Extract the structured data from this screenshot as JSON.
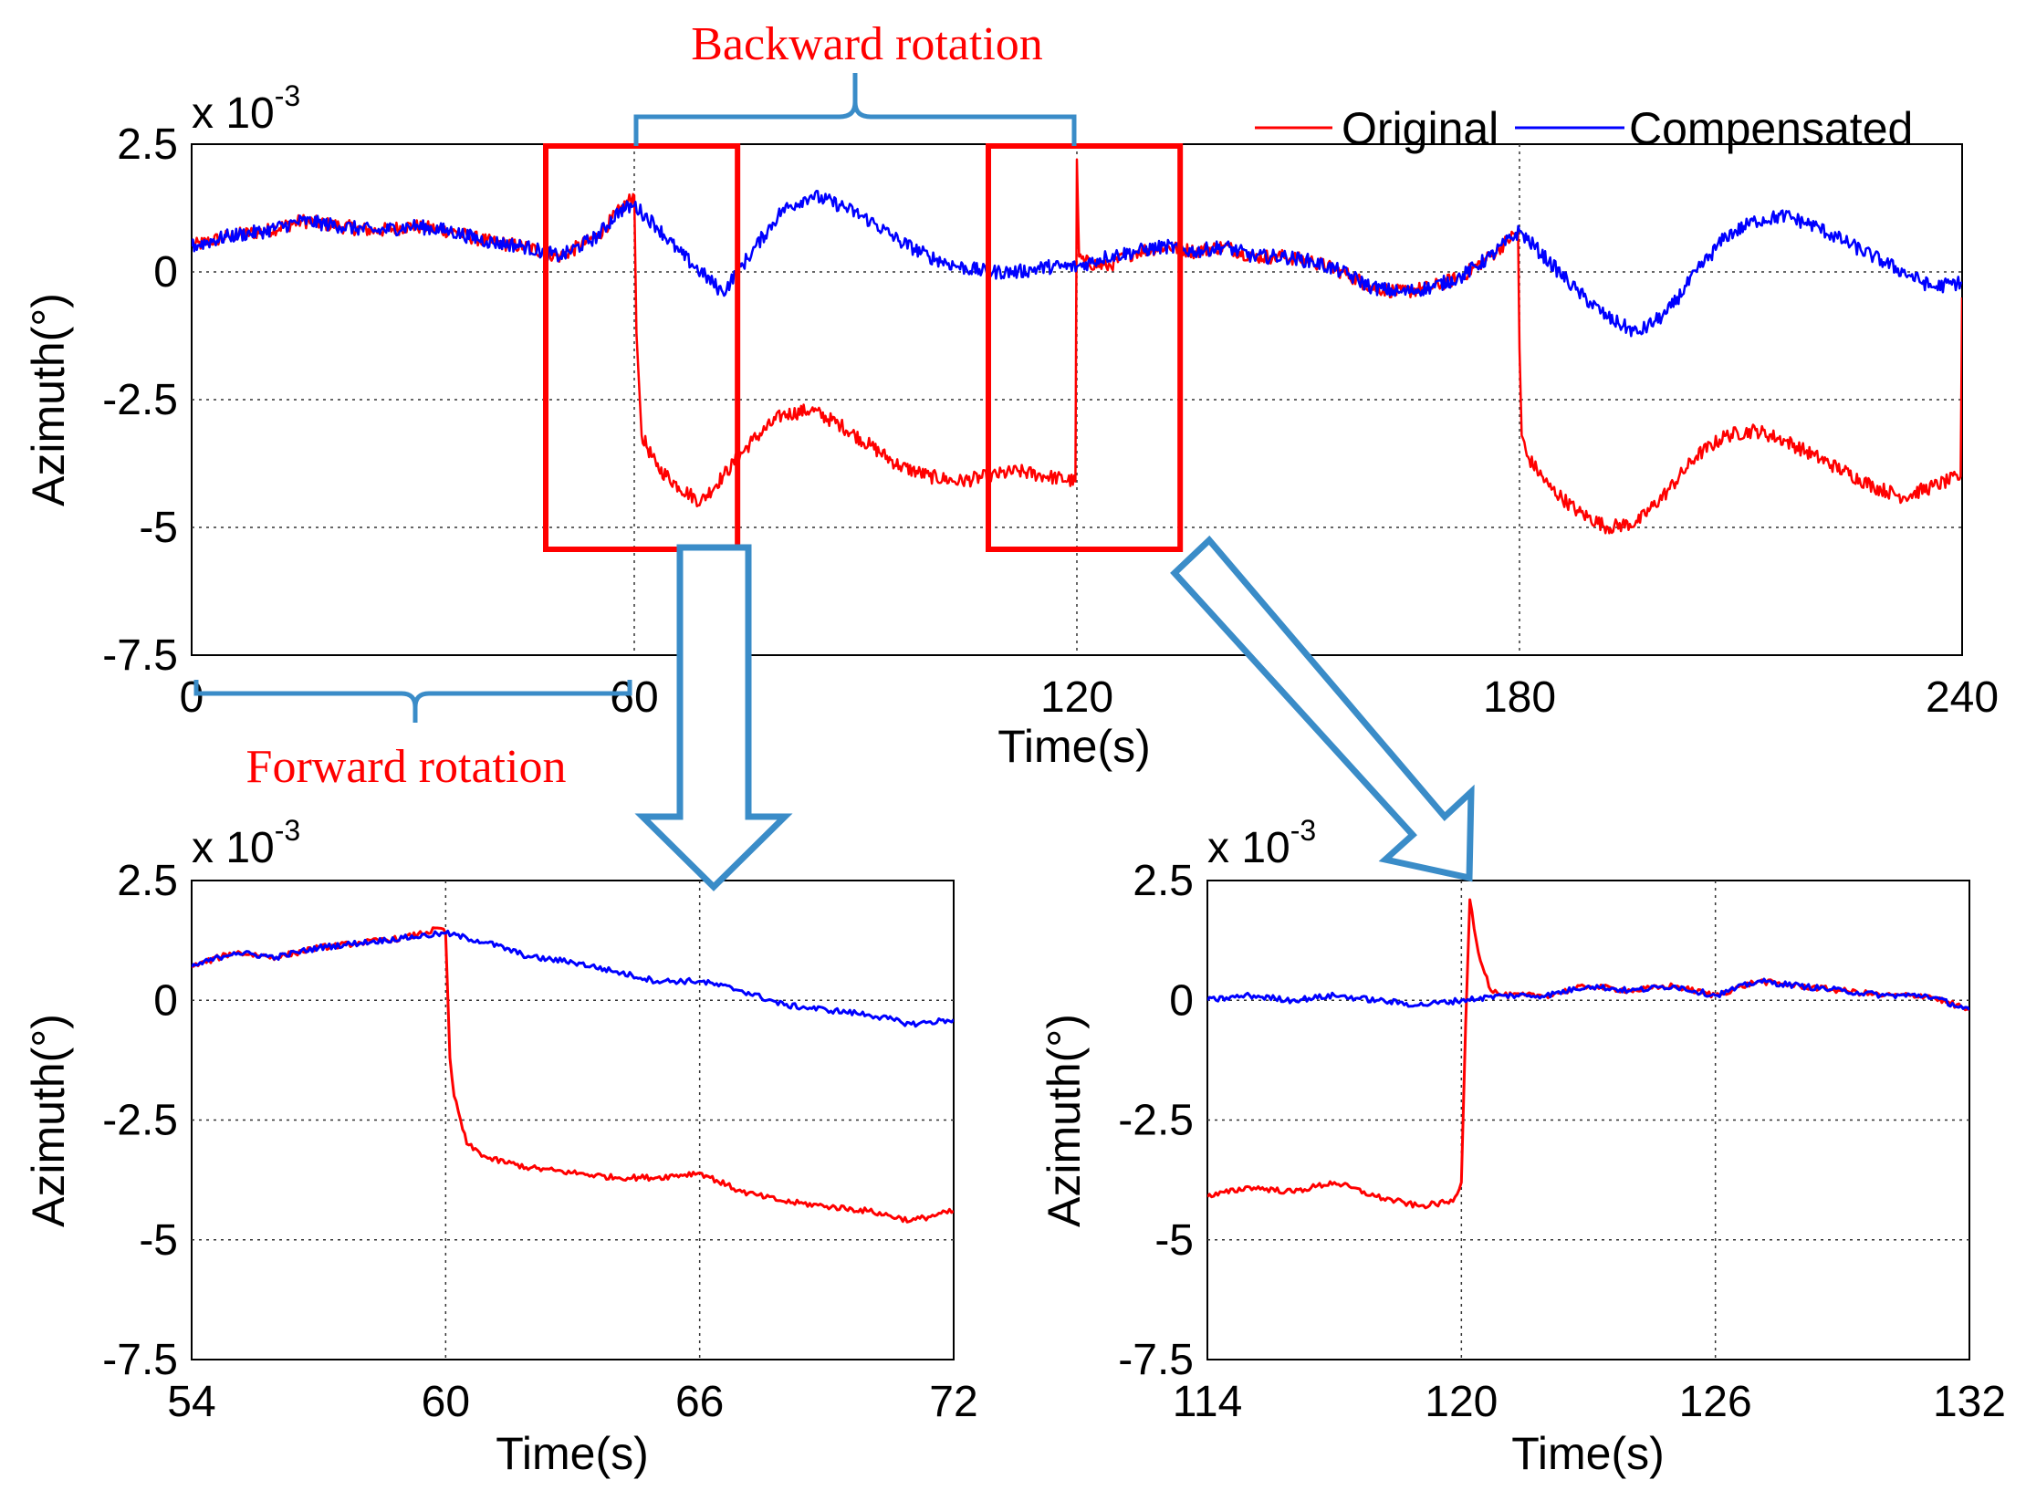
{
  "colors": {
    "original": "#ff0000",
    "compensated": "#0000ff",
    "annotation": "#3a8cc8",
    "highlight": "#ff0000"
  },
  "annotations": {
    "backward": "Backward rotation",
    "forward": "Forward rotation"
  },
  "legend": [
    "Original",
    "Compensated"
  ],
  "chart_data": [
    {
      "id": "main",
      "type": "line",
      "xlabel": "Time(s)",
      "ylabel": "Azimuth(°)",
      "exponent_base": "x 10",
      "exponent_power": "-3",
      "xlim": [
        0,
        240
      ],
      "ylim": [
        -7.5,
        2.5
      ],
      "xticks": [
        0,
        60,
        120,
        180,
        240
      ],
      "xtick_labels": [
        "0",
        "60",
        "120",
        "180",
        "240"
      ],
      "yticks": [
        2.5,
        0,
        -2.5,
        -5,
        -7.5
      ],
      "ytick_labels": [
        "2.5",
        "0",
        "-2.5",
        "-5",
        "-7.5"
      ],
      "grid": true,
      "legend_position": "top-right",
      "highlight_boxes": [
        [
          48,
          74
        ],
        [
          108,
          134
        ]
      ],
      "series": [
        {
          "name": "Original",
          "color": "#ff0000",
          "x": [
            0,
            5,
            10,
            15,
            20,
            25,
            30,
            35,
            40,
            45,
            50,
            55,
            58,
            60,
            60.3,
            61,
            63,
            66,
            69,
            72,
            76,
            80,
            84,
            88,
            92,
            96,
            100,
            104,
            108,
            112,
            116,
            119.8,
            120,
            120.3,
            121,
            124,
            128,
            132,
            136,
            140,
            144,
            148,
            152,
            156,
            160,
            164,
            168,
            172,
            176,
            179.8,
            180,
            180.3,
            181,
            184,
            188,
            192,
            196,
            200,
            204,
            208,
            212,
            216,
            220,
            224,
            228,
            232,
            236,
            239.8,
            240
          ],
          "y": [
            0.5,
            0.7,
            0.8,
            1.0,
            0.9,
            0.8,
            0.9,
            0.8,
            0.6,
            0.5,
            0.3,
            0.7,
            1.2,
            1.5,
            -1.2,
            -3.2,
            -3.8,
            -4.2,
            -4.5,
            -4.0,
            -3.3,
            -2.8,
            -2.7,
            -3.0,
            -3.4,
            -3.8,
            -4.0,
            -4.1,
            -4.0,
            -3.9,
            -4.0,
            -4.1,
            2.2,
            0.3,
            0.2,
            0.1,
            0.4,
            0.5,
            0.4,
            0.5,
            0.3,
            0.3,
            0.2,
            0.0,
            -0.3,
            -0.4,
            -0.3,
            -0.1,
            0.3,
            0.8,
            -1.5,
            -3.2,
            -3.6,
            -4.2,
            -4.7,
            -5.0,
            -4.9,
            -4.3,
            -3.6,
            -3.2,
            -3.1,
            -3.3,
            -3.6,
            -3.9,
            -4.2,
            -4.4,
            -4.2,
            -4.0,
            -0.5
          ]
        },
        {
          "name": "Compensated",
          "color": "#0000ff",
          "x": [
            0,
            5,
            10,
            15,
            20,
            25,
            30,
            35,
            40,
            45,
            50,
            55,
            58,
            60,
            63,
            66,
            69,
            72,
            76,
            80,
            84,
            88,
            92,
            96,
            100,
            104,
            108,
            112,
            116,
            120,
            124,
            128,
            132,
            136,
            140,
            144,
            148,
            152,
            156,
            160,
            164,
            168,
            172,
            176,
            180,
            184,
            188,
            192,
            196,
            200,
            204,
            208,
            212,
            216,
            220,
            224,
            228,
            232,
            236,
            240
          ],
          "y": [
            0.5,
            0.7,
            0.8,
            1.0,
            0.9,
            0.8,
            0.9,
            0.8,
            0.6,
            0.5,
            0.3,
            0.7,
            1.2,
            1.3,
            0.9,
            0.4,
            0.0,
            -0.4,
            0.4,
            1.2,
            1.5,
            1.3,
            1.0,
            0.6,
            0.3,
            0.1,
            0.0,
            0.0,
            0.1,
            0.1,
            0.3,
            0.4,
            0.5,
            0.4,
            0.5,
            0.3,
            0.3,
            0.2,
            0.0,
            -0.3,
            -0.4,
            -0.3,
            -0.1,
            0.3,
            0.8,
            0.2,
            -0.4,
            -0.9,
            -1.2,
            -0.8,
            0.0,
            0.7,
            1.0,
            1.1,
            0.9,
            0.6,
            0.3,
            0.0,
            -0.3,
            -0.2
          ]
        }
      ]
    },
    {
      "id": "zoom1",
      "type": "line",
      "xlabel": "Time(s)",
      "ylabel": "Azimuth(°)",
      "exponent_base": "x 10",
      "exponent_power": "-3",
      "xlim": [
        54,
        72
      ],
      "ylim": [
        -7.5,
        2.5
      ],
      "xticks": [
        54,
        60,
        66,
        72
      ],
      "xtick_labels": [
        "54",
        "60",
        "66",
        "72"
      ],
      "yticks": [
        2.5,
        0,
        -2.5,
        -5,
        -7.5
      ],
      "ytick_labels": [
        "2.5",
        "0",
        "-2.5",
        "-5",
        "-7.5"
      ],
      "grid": true,
      "series": [
        {
          "name": "Original",
          "color": "#ff0000",
          "x": [
            54,
            55,
            56,
            57,
            58,
            59,
            59.9,
            60,
            60.1,
            60.2,
            60.5,
            61,
            62,
            63,
            64,
            65,
            66,
            67,
            68,
            69,
            70,
            71,
            72
          ],
          "y": [
            0.7,
            1.0,
            0.9,
            1.1,
            1.2,
            1.3,
            1.5,
            1.4,
            -1.2,
            -2.0,
            -3.0,
            -3.3,
            -3.5,
            -3.6,
            -3.7,
            -3.7,
            -3.6,
            -4.0,
            -4.2,
            -4.3,
            -4.4,
            -4.6,
            -4.4
          ]
        },
        {
          "name": "Compensated",
          "color": "#0000ff",
          "x": [
            54,
            55,
            56,
            57,
            58,
            59,
            60,
            61,
            62,
            63,
            64,
            65,
            66,
            67,
            68,
            69,
            70,
            71,
            72
          ],
          "y": [
            0.7,
            1.0,
            0.9,
            1.1,
            1.2,
            1.3,
            1.4,
            1.2,
            0.9,
            0.8,
            0.6,
            0.4,
            0.4,
            0.2,
            -0.1,
            -0.2,
            -0.3,
            -0.5,
            -0.4
          ]
        }
      ]
    },
    {
      "id": "zoom2",
      "type": "line",
      "xlabel": "Time(s)",
      "ylabel": "Azimuth(°)",
      "exponent_base": "x 10",
      "exponent_power": "-3",
      "xlim": [
        114,
        132
      ],
      "ylim": [
        -7.5,
        2.5
      ],
      "xticks": [
        114,
        120,
        126,
        132
      ],
      "xtick_labels": [
        "114",
        "120",
        "126",
        "132"
      ],
      "yticks": [
        2.5,
        0,
        -2.5,
        -5,
        -7.5
      ],
      "ytick_labels": [
        "2.5",
        "0",
        "-2.5",
        "-5",
        "-7.5"
      ],
      "grid": true,
      "series": [
        {
          "name": "Original",
          "color": "#ff0000",
          "x": [
            114,
            115,
            116,
            117,
            118,
            119,
            119.8,
            120,
            120.1,
            120.2,
            120.4,
            120.7,
            121,
            122,
            123,
            124,
            125,
            126,
            127,
            128,
            129,
            130,
            131,
            132
          ],
          "y": [
            -4.1,
            -3.9,
            -4.0,
            -3.8,
            -4.1,
            -4.3,
            -4.2,
            -3.8,
            -0.5,
            2.1,
            1.0,
            0.2,
            0.1,
            0.1,
            0.3,
            0.2,
            0.3,
            0.1,
            0.4,
            0.3,
            0.2,
            0.1,
            0.1,
            -0.2
          ]
        },
        {
          "name": "Compensated",
          "color": "#0000ff",
          "x": [
            114,
            115,
            116,
            117,
            118,
            119,
            120,
            121,
            122,
            123,
            124,
            125,
            126,
            127,
            128,
            129,
            130,
            131,
            132
          ],
          "y": [
            0.0,
            0.1,
            0.0,
            0.1,
            0.0,
            -0.1,
            0.0,
            0.1,
            0.1,
            0.3,
            0.2,
            0.3,
            0.1,
            0.4,
            0.3,
            0.2,
            0.1,
            0.1,
            -0.2
          ]
        }
      ]
    }
  ]
}
